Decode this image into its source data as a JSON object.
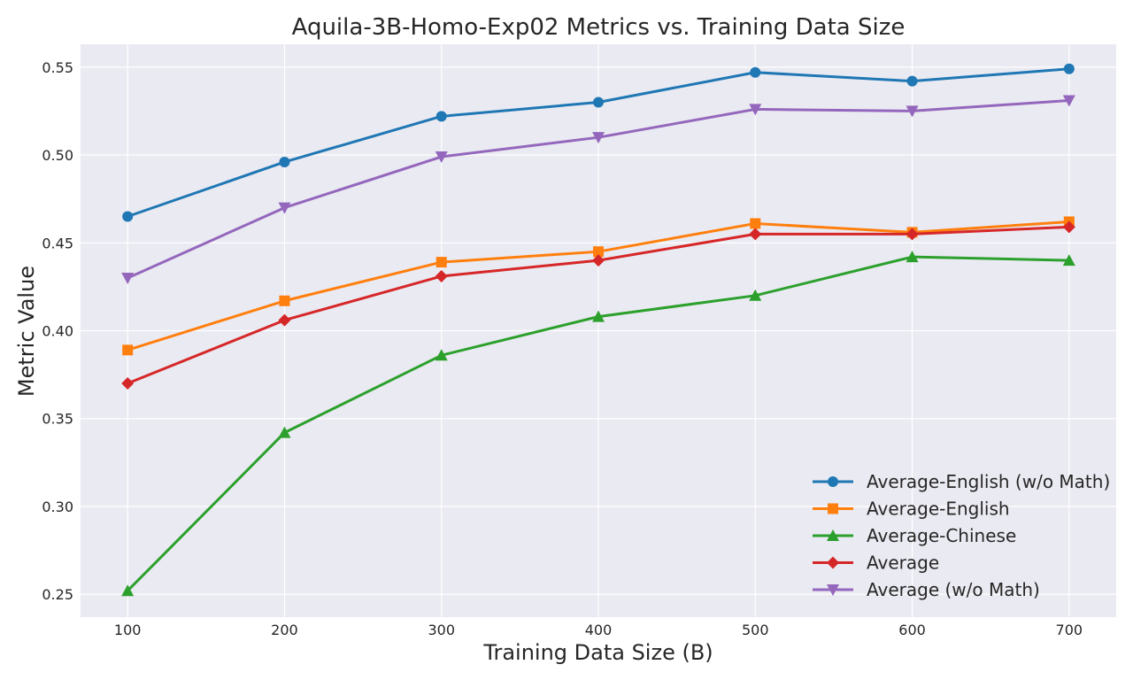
{
  "chart_data": {
    "type": "line",
    "title": "Aquila-3B-Homo-Exp02 Metrics vs. Training Data Size",
    "xlabel": "Training Data Size (B)",
    "ylabel": "Metric Value",
    "x": [
      100,
      200,
      300,
      400,
      500,
      600,
      700
    ],
    "xticks": [
      100,
      200,
      300,
      400,
      500,
      600,
      700
    ],
    "yticks": [
      0.25,
      0.3,
      0.35,
      0.4,
      0.45,
      0.5,
      0.55
    ],
    "xlim": [
      70,
      730
    ],
    "ylim": [
      0.237,
      0.563
    ],
    "grid": true,
    "legend": "lower-right",
    "background": "#eaeaf2",
    "series": [
      {
        "name": "Average-English (w/o Math)",
        "color": "#1f77b4",
        "marker": "circle",
        "values": [
          0.465,
          0.496,
          0.522,
          0.53,
          0.547,
          0.542,
          0.549
        ]
      },
      {
        "name": "Average-English",
        "color": "#ff7f0e",
        "marker": "square",
        "values": [
          0.389,
          0.417,
          0.439,
          0.445,
          0.461,
          0.456,
          0.462
        ]
      },
      {
        "name": "Average-Chinese",
        "color": "#2ca02c",
        "marker": "triangle-up",
        "values": [
          0.252,
          0.342,
          0.386,
          0.408,
          0.42,
          0.442,
          0.44
        ]
      },
      {
        "name": "Average",
        "color": "#d62728",
        "marker": "diamond",
        "values": [
          0.37,
          0.406,
          0.431,
          0.44,
          0.455,
          0.455,
          0.459
        ]
      },
      {
        "name": "Average (w/o Math)",
        "color": "#9467bd",
        "marker": "triangle-down",
        "values": [
          0.43,
          0.47,
          0.499,
          0.51,
          0.526,
          0.525,
          0.531
        ]
      }
    ]
  }
}
